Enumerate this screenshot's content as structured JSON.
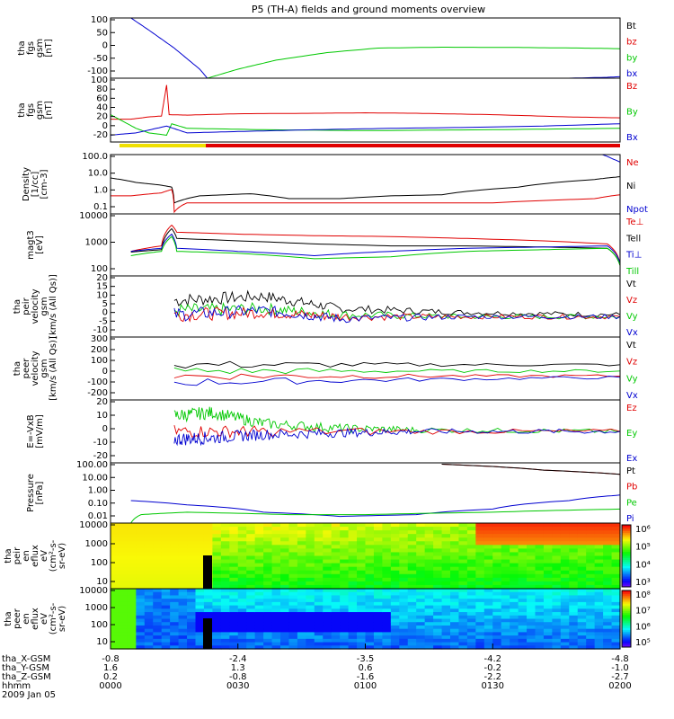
{
  "title": "P5 (TH-A) fields and ground moments overview",
  "footer": {
    "rows": [
      {
        "label": "tha_X-GSM",
        "values": [
          "-0.8",
          "-2.4",
          "-3.5",
          "-4.2",
          "-4.8"
        ]
      },
      {
        "label": "tha_Y-GSM",
        "values": [
          "1.6",
          "1.3",
          "0.6",
          "-0.2",
          "-1.0"
        ]
      },
      {
        "label": "tha_Z-GSM",
        "values": [
          "0.2",
          "-0.8",
          "-1.6",
          "-2.2",
          "-2.7"
        ]
      },
      {
        "label": "hhmm",
        "values": [
          "0000",
          "0030",
          "0100",
          "0130",
          "0200"
        ]
      }
    ],
    "date": "2009 Jan 05"
  },
  "colors": {
    "black": "#000000",
    "red": "#e00000",
    "green": "#00c800",
    "blue": "#0000d0"
  },
  "chart_data": [
    {
      "type": "line",
      "ylabel": [
        "tha",
        "fgs",
        "gsm",
        "[nT]"
      ],
      "yticks": [
        "100",
        "50",
        "0",
        "-50",
        "-100"
      ],
      "ylim": [
        -100,
        100
      ],
      "legend": [
        {
          "name": "Bt",
          "color": "black"
        },
        {
          "name": "bz",
          "color": "red"
        },
        {
          "name": "by",
          "color": "green"
        },
        {
          "name": "bx",
          "color": "blue"
        }
      ],
      "series": [
        {
          "name": "bx",
          "color": "blue",
          "x": [
            0.08,
            0.15,
            0.25,
            0.35,
            0.38,
            1.4,
            1.8,
            1.95,
            2.0
          ],
          "y": [
            100,
            60,
            0,
            -70,
            -100,
            -100,
            -100,
            -97,
            -95
          ]
        },
        {
          "name": "by",
          "color": "green",
          "x": [
            0.38,
            0.5,
            0.65,
            0.85,
            1.05,
            1.3,
            1.6,
            1.85,
            2.0
          ],
          "y": [
            -100,
            -70,
            -40,
            -15,
            0,
            3,
            2,
            0,
            -2
          ]
        }
      ]
    },
    {
      "type": "line",
      "ylabel": [
        "tha",
        "fgs",
        "gsm",
        "[nT]"
      ],
      "yticks": [
        "100",
        "80",
        "60",
        "40",
        "20",
        "0",
        "-20"
      ],
      "ylim": [
        -35,
        105
      ],
      "legend": [
        {
          "name": "Bz",
          "color": "red"
        },
        {
          "name": "By",
          "color": "green"
        },
        {
          "name": "Bx",
          "color": "blue"
        }
      ],
      "series": [
        {
          "name": "Bz",
          "color": "red",
          "x": [
            0.0,
            0.08,
            0.15,
            0.2,
            0.22,
            0.23,
            0.3,
            0.5,
            0.8,
            1.0,
            1.2,
            1.5,
            1.8,
            2.0
          ],
          "y": [
            15,
            15,
            20,
            22,
            90,
            25,
            24,
            27,
            28,
            29,
            28,
            25,
            20,
            18
          ]
        },
        {
          "name": "By",
          "color": "green",
          "x": [
            0.0,
            0.05,
            0.1,
            0.15,
            0.22,
            0.24,
            0.3,
            0.6,
            1.0,
            1.5,
            2.0
          ],
          "y": [
            25,
            10,
            -5,
            -15,
            -20,
            5,
            -5,
            -8,
            -10,
            -8,
            -5
          ]
        },
        {
          "name": "Bx",
          "color": "blue",
          "x": [
            0.0,
            0.1,
            0.22,
            0.3,
            0.5,
            0.8,
            1.1,
            1.4,
            1.7,
            2.0
          ],
          "y": [
            -20,
            -15,
            0,
            -15,
            -12,
            -8,
            -5,
            -3,
            0,
            5
          ]
        }
      ]
    },
    {
      "type": "line",
      "log": true,
      "ylabel": [
        "Density",
        "[1/cc]",
        "[cm-3]"
      ],
      "yticks": [
        "100.0",
        "10.0",
        "1.0",
        "0.1"
      ],
      "ylim": [
        0.08,
        100
      ],
      "legend": [
        {
          "name": "Ne",
          "color": "red"
        },
        {
          "name": "Ni",
          "color": "black"
        },
        {
          "name": "Npot",
          "color": "blue"
        }
      ],
      "series": [
        {
          "name": "Ni",
          "color": "black",
          "x": [
            0.0,
            0.1,
            0.2,
            0.24,
            0.25,
            0.35,
            0.55,
            0.7,
            0.9,
            1.1,
            1.3,
            1.6,
            1.9,
            2.0
          ],
          "y": [
            6,
            3.5,
            2.5,
            2,
            0.3,
            0.7,
            0.9,
            0.5,
            0.5,
            0.7,
            0.8,
            2,
            5,
            7
          ]
        },
        {
          "name": "Ne",
          "color": "red",
          "x": [
            0.0,
            0.08,
            0.2,
            0.24,
            0.25,
            0.3,
            0.7,
            1.1,
            1.5,
            1.9,
            2.0
          ],
          "y": [
            0.7,
            0.7,
            1.0,
            1.5,
            0.1,
            0.3,
            0.3,
            0.3,
            0.3,
            0.5,
            0.8
          ]
        },
        {
          "name": "Npot",
          "color": "blue",
          "x": [
            1.93,
            1.97,
            2.0
          ],
          "y": [
            100,
            60,
            40
          ]
        }
      ]
    },
    {
      "type": "line",
      "log": true,
      "ylabel": [
        "magt3",
        "[eV]"
      ],
      "yticks": [
        "10000",
        "1000",
        "100"
      ],
      "ylim": [
        30,
        10000
      ],
      "legend": [
        {
          "name": "Te⊥",
          "color": "red"
        },
        {
          "name": "Tell",
          "color": "black"
        },
        {
          "name": "Ti⊥",
          "color": "blue"
        },
        {
          "name": "Till",
          "color": "green"
        }
      ],
      "series": [
        {
          "name": "Te⊥",
          "color": "red",
          "x": [
            0.08,
            0.2,
            0.24,
            0.26,
            0.5,
            0.8,
            1.1,
            1.4,
            1.7,
            1.95,
            2.0
          ],
          "y": [
            300,
            500,
            3500,
            1800,
            1500,
            1300,
            1200,
            1000,
            800,
            600,
            100
          ]
        },
        {
          "name": "Tell",
          "color": "black",
          "x": [
            0.08,
            0.2,
            0.24,
            0.26,
            0.5,
            0.8,
            1.1,
            1.4,
            1.7,
            1.95,
            2.0
          ],
          "y": [
            280,
            350,
            2500,
            1000,
            800,
            600,
            500,
            500,
            450,
            400,
            80
          ]
        },
        {
          "name": "Ti⊥",
          "color": "blue",
          "x": [
            0.08,
            0.2,
            0.24,
            0.26,
            0.5,
            0.8,
            1.1,
            1.4,
            1.7,
            1.95,
            2.0
          ],
          "y": [
            300,
            400,
            1500,
            400,
            300,
            200,
            300,
            400,
            450,
            500,
            100
          ]
        },
        {
          "name": "Till",
          "color": "green",
          "x": [
            0.08,
            0.2,
            0.24,
            0.26,
            0.5,
            0.8,
            1.1,
            1.4,
            1.7,
            1.95,
            2.0
          ],
          "y": [
            200,
            300,
            1200,
            300,
            250,
            150,
            180,
            300,
            350,
            400,
            80
          ]
        }
      ]
    },
    {
      "type": "line",
      "ylabel": [
        "tha",
        "peir",
        "velocity",
        "gsm",
        "[km/s (All Qs)]"
      ],
      "yticks": [
        "20",
        "15",
        "10",
        "5",
        "0",
        "-5",
        "-10"
      ],
      "ylim": [
        -10,
        20
      ],
      "legend": [
        {
          "name": "Vt",
          "color": "black"
        },
        {
          "name": "Vz",
          "color": "red"
        },
        {
          "name": "Vy",
          "color": "green"
        },
        {
          "name": "Vx",
          "color": "blue"
        }
      ],
      "series": [
        {
          "name": "Vt",
          "color": "black",
          "x": [
            0.25,
            0.6,
            0.9,
            1.4,
            2.0
          ],
          "y": [
            8,
            10,
            4,
            2,
            1
          ]
        },
        {
          "name": "Vy",
          "color": "green",
          "x": [
            0.25,
            0.6,
            0.9,
            1.4,
            2.0
          ],
          "y": [
            3,
            4,
            1,
            0,
            0
          ]
        },
        {
          "name": "Vz",
          "color": "red",
          "x": [
            0.25,
            0.6,
            0.9,
            1.4,
            2.0
          ],
          "y": [
            1,
            2,
            0,
            0,
            0
          ]
        },
        {
          "name": "Vx",
          "color": "blue",
          "x": [
            0.25,
            0.6,
            0.9,
            1.4,
            2.0
          ],
          "y": [
            1,
            3,
            -1,
            0,
            0
          ]
        }
      ]
    },
    {
      "type": "line",
      "ylabel": [
        "tha",
        "peer",
        "velocity",
        "gsm",
        "[km/s (All Qs)]"
      ],
      "yticks": [
        "300",
        "200",
        "100",
        "0",
        "-100",
        "-200"
      ],
      "ylim": [
        -200,
        300
      ],
      "legend": [
        {
          "name": "Vt",
          "color": "black"
        },
        {
          "name": "Vz",
          "color": "red"
        },
        {
          "name": "Vy",
          "color": "green"
        },
        {
          "name": "Vx",
          "color": "blue"
        }
      ],
      "series": [
        {
          "name": "Vt",
          "color": "black",
          "x": [
            0.25,
            2.0
          ],
          "y": [
            80,
            80
          ]
        },
        {
          "name": "Vy",
          "color": "green",
          "x": [
            0.25,
            2.0
          ],
          "y": [
            30,
            30
          ]
        },
        {
          "name": "Vz",
          "color": "red",
          "x": [
            0.25,
            2.0
          ],
          "y": [
            -10,
            -10
          ]
        },
        {
          "name": "Vx",
          "color": "blue",
          "x": [
            0.25,
            2.0
          ],
          "y": [
            -60,
            -20
          ]
        }
      ]
    },
    {
      "type": "line",
      "ylabel": [
        "E=-VxB",
        "[mV/m]"
      ],
      "yticks": [
        "20",
        "10",
        "0",
        "-10",
        "-20"
      ],
      "ylim": [
        -20,
        20
      ],
      "legend": [
        {
          "name": "Ez",
          "color": "red"
        },
        {
          "name": "Ey",
          "color": "green"
        },
        {
          "name": "Ex",
          "color": "blue"
        }
      ],
      "series": [
        {
          "name": "Ey",
          "color": "green",
          "x": [
            0.25,
            0.4,
            0.6,
            0.9,
            1.2,
            2.0
          ],
          "y": [
            10,
            12,
            5,
            2,
            1,
            0
          ]
        },
        {
          "name": "Ez",
          "color": "red",
          "x": [
            0.25,
            0.6,
            2.0
          ],
          "y": [
            0,
            0,
            0
          ]
        },
        {
          "name": "Ex",
          "color": "blue",
          "x": [
            0.25,
            0.4,
            0.6,
            0.9,
            1.2,
            2.0
          ],
          "y": [
            -5,
            -4,
            -2,
            -1,
            0,
            0
          ]
        }
      ]
    },
    {
      "type": "line",
      "log": true,
      "ylabel": [
        "Pressure",
        "[nPa]"
      ],
      "yticks": [
        "100.00",
        "10.00",
        "1.00",
        "0.10",
        "0.01"
      ],
      "ylim": [
        0.005,
        100
      ],
      "legend": [
        {
          "name": "Pt",
          "color": "black"
        },
        {
          "name": "Pb",
          "color": "red"
        },
        {
          "name": "Pe",
          "color": "green"
        },
        {
          "name": "Pi",
          "color": "blue"
        }
      ],
      "series": [
        {
          "name": "Pi",
          "color": "blue",
          "x": [
            0.08,
            0.3,
            0.6,
            0.9,
            1.2,
            1.5,
            1.8,
            2.0
          ],
          "y": [
            0.2,
            0.1,
            0.03,
            0.015,
            0.02,
            0.05,
            0.2,
            0.5
          ]
        },
        {
          "name": "Pe",
          "color": "green",
          "x": [
            0.08,
            0.12,
            0.3,
            0.7,
            1.0,
            1.5,
            2.0
          ],
          "y": [
            0.005,
            0.02,
            0.03,
            0.02,
            0.02,
            0.03,
            0.05
          ]
        },
        {
          "name": "Pb",
          "color": "red",
          "x": [
            1.3,
            1.7,
            2.0
          ],
          "y": [
            80,
            30,
            15
          ]
        },
        {
          "name": "Pt",
          "color": "black",
          "x": [
            1.3,
            1.7,
            2.0
          ],
          "y": [
            80,
            30,
            15
          ]
        }
      ]
    },
    {
      "type": "heatmap",
      "ylabel": [
        "tha",
        "peir",
        "en",
        "eflux",
        "eV",
        "(cm²-s-",
        "sr-eV)"
      ],
      "yticks": [
        "10000",
        "1000",
        "100",
        "10"
      ],
      "colorbar": [
        "10⁶",
        "10⁵",
        "10⁴",
        "10³"
      ]
    },
    {
      "type": "heatmap",
      "ylabel": [
        "tha",
        "peer",
        "en",
        "eflux",
        "eV",
        "(cm²-s-",
        "sr-eV)"
      ],
      "yticks": [
        "10000",
        "1000",
        "100",
        "10"
      ],
      "colorbar": [
        "10⁸",
        "10⁷",
        "10⁶",
        "10⁵"
      ]
    }
  ]
}
